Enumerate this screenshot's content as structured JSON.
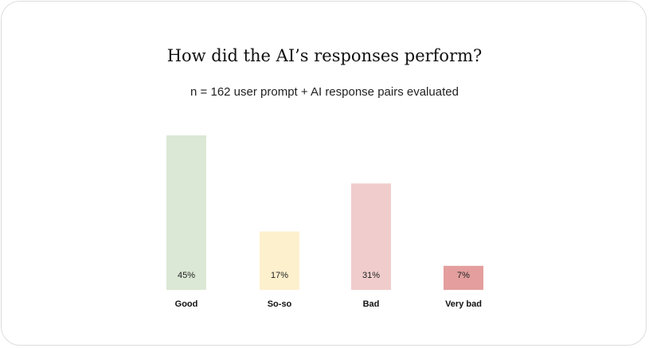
{
  "chart_data": {
    "type": "bar",
    "title": "How did the AI’s responses perform?",
    "subtitle": "n = 162 user prompt + AI response pairs evaluated",
    "categories": [
      "Good",
      "So-so",
      "Bad",
      "Very bad"
    ],
    "values": [
      45,
      17,
      31,
      7
    ],
    "value_labels": [
      "45%",
      "17%",
      "31%",
      "7%"
    ],
    "colors": [
      "#dbe8d5",
      "#fdf0cd",
      "#f0cdcc",
      "#e39e9d"
    ],
    "ylim": [
      0,
      45
    ],
    "xlabel": "",
    "ylabel": "",
    "grid": false,
    "legend": "none"
  }
}
